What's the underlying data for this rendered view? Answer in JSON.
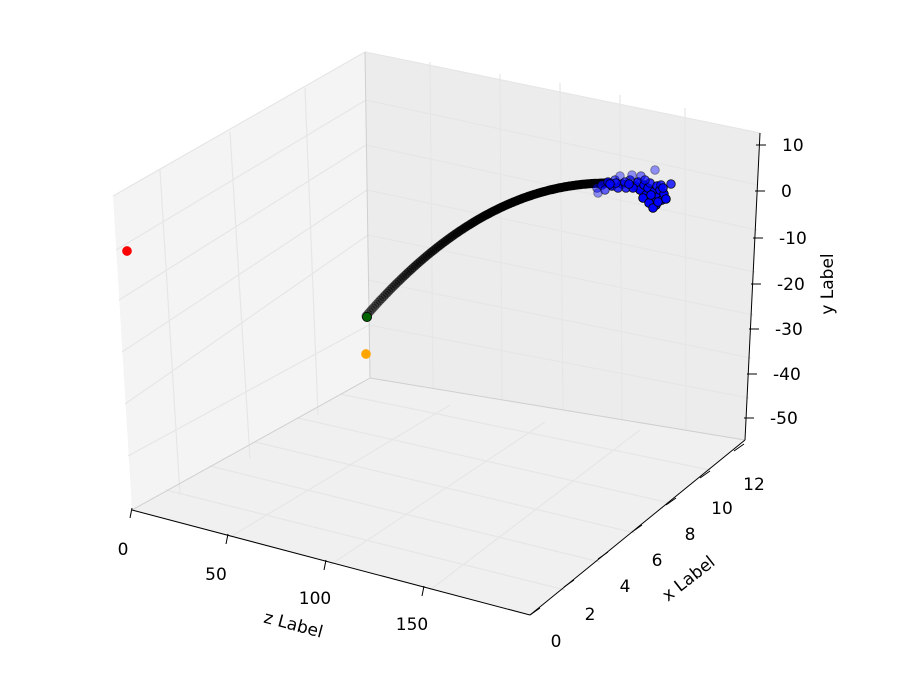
{
  "chart_data": {
    "type": "scatter",
    "projection": "3d",
    "axes": {
      "x": {
        "label": "x Label",
        "ticks": [
          0,
          2,
          4,
          6,
          8,
          10,
          12
        ]
      },
      "y": {
        "label": "y Label",
        "ticks": [
          10,
          0,
          -10,
          -20,
          -30,
          -40,
          -50
        ]
      },
      "z": {
        "label": "z Label",
        "ticks": [
          0,
          50,
          100,
          150
        ]
      }
    },
    "grid": true,
    "legend": "none",
    "colors": {
      "trajectory": "#000000",
      "cluster": "#0000ff",
      "start_point": "#006400",
      "highlight_red": "#ff0000",
      "highlight_orange": "#ffa500",
      "pane": "#f2f2f2",
      "grid": "#e6e6e6"
    },
    "series": [
      {
        "kind": "trajectory",
        "description_points": 140
      },
      {
        "kind": "cluster",
        "description_points": 45
      }
    ],
    "markers": [
      {
        "color": "red"
      },
      {
        "color": "darkgreen"
      },
      {
        "color": "orange"
      }
    ]
  }
}
